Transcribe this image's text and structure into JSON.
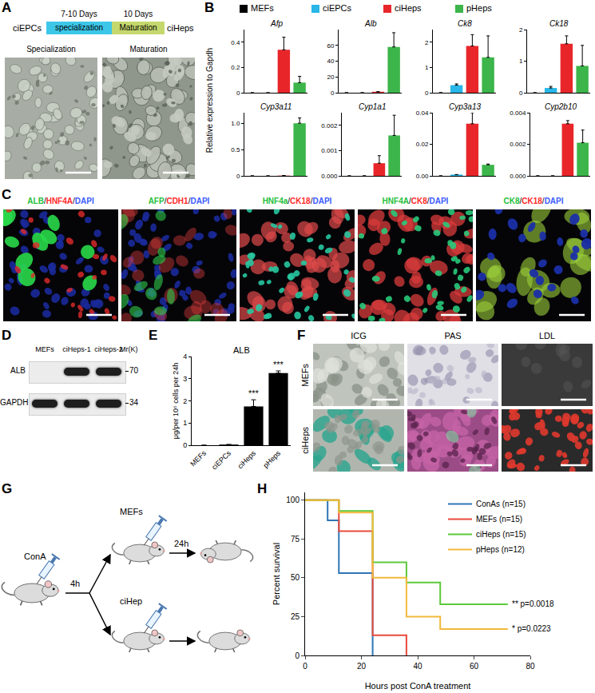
{
  "panel_labels": [
    "A",
    "B",
    "C",
    "D",
    "E",
    "F",
    "G",
    "H"
  ],
  "panel_A": {
    "start": "ciEPCs",
    "end": "ciHeps",
    "stages": [
      {
        "name": "specialization",
        "duration": "7-10 Days"
      },
      {
        "name": "Maturation",
        "duration": "10 Days"
      }
    ],
    "images": [
      "Specialization",
      "Maturation"
    ]
  },
  "panel_B": {
    "y_label": "Relative expression to Gapdh",
    "legend": [
      {
        "name": "MEFs",
        "color": "#000000"
      },
      {
        "name": "ciEPCs",
        "color": "#29b6e8"
      },
      {
        "name": "ciHeps",
        "color": "#e8262a"
      },
      {
        "name": "pHeps",
        "color": "#3cb54a"
      }
    ]
  },
  "panel_C": {
    "images": [
      [
        "ALB",
        "HNF4A",
        "DAPI"
      ],
      [
        "AFP",
        "CDH1",
        "DAPI"
      ],
      [
        "HNF4a",
        "CK18",
        "DAPI"
      ],
      [
        "HNF4A",
        "CK8",
        "DAPI"
      ],
      [
        "CK8",
        "CK18",
        "DAPI"
      ]
    ]
  },
  "panel_D": {
    "lanes": [
      "MEFs",
      "ciHeps-1",
      "ciHeps-2"
    ],
    "mr_label": "Mr(K)",
    "rows": [
      {
        "name": "ALB",
        "mr": "70",
        "bands": [
          false,
          true,
          true
        ]
      },
      {
        "name": "GAPDH",
        "mr": "34",
        "bands": [
          true,
          true,
          true
        ]
      }
    ]
  },
  "panel_F": {
    "columns": [
      "ICG",
      "PAS",
      "LDL"
    ],
    "rows": [
      "MEFs",
      "ciHeps"
    ]
  },
  "panel_G": {
    "injection": "ConA",
    "wait": "4h",
    "upper": {
      "cells": "MEFs",
      "time": "24h"
    },
    "lower": {
      "cells": "ciHep"
    }
  },
  "chart_data": [
    {
      "type": "bar",
      "panel": "B",
      "title": "Afp",
      "categories": [
        "MEFs",
        "ciEPCs",
        "ciHeps",
        "pHeps"
      ],
      "colors": [
        "#000000",
        "#29b6e8",
        "#e8262a",
        "#3cb54a"
      ],
      "values": [
        0,
        0,
        0.34,
        0.08
      ],
      "errors": [
        null,
        null,
        0.1,
        0.05
      ],
      "ylim": [
        0,
        0.5
      ],
      "yticks": [
        0,
        0.2,
        0.4
      ],
      "tick_labels": "y"
    },
    {
      "type": "bar",
      "panel": "B",
      "title": "Alb",
      "categories": [
        "MEFs",
        "ciEPCs",
        "ciHeps",
        "pHeps"
      ],
      "colors": [
        "#000000",
        "#29b6e8",
        "#e8262a",
        "#3cb54a"
      ],
      "values": [
        0,
        0,
        1.2,
        58
      ],
      "errors": [
        null,
        null,
        0.1,
        18
      ],
      "ylim": [
        0,
        80
      ],
      "yticks": [
        0,
        20,
        40,
        60
      ],
      "tick_labels": "y"
    },
    {
      "type": "bar",
      "panel": "B",
      "title": "Ck8",
      "categories": [
        "MEFs",
        "ciEPCs",
        "ciHeps",
        "pHeps"
      ],
      "colors": [
        "#000000",
        "#29b6e8",
        "#e8262a",
        "#3cb54a"
      ],
      "values": [
        0,
        0.3,
        1.85,
        1.4
      ],
      "errors": [
        null,
        0.05,
        0.45,
        0.85
      ],
      "ylim": [
        0,
        2.5
      ],
      "yticks": [
        0,
        1,
        2
      ],
      "tick_labels": "y"
    },
    {
      "type": "bar",
      "panel": "B",
      "title": "Ck18",
      "categories": [
        "MEFs",
        "ciEPCs",
        "ciHeps",
        "pHeps"
      ],
      "colors": [
        "#000000",
        "#29b6e8",
        "#e8262a",
        "#3cb54a"
      ],
      "values": [
        0,
        0.15,
        1.55,
        0.85
      ],
      "errors": [
        null,
        0.05,
        0.25,
        0.65
      ],
      "ylim": [
        0,
        2
      ],
      "yticks": [
        0,
        1,
        2
      ],
      "tick_labels": "y"
    },
    {
      "type": "bar",
      "panel": "B",
      "title": "Cyp3a11",
      "categories": [
        "MEFs",
        "ciEPCs",
        "ciHeps",
        "pHeps"
      ],
      "colors": [
        "#000000",
        "#29b6e8",
        "#e8262a",
        "#3cb54a"
      ],
      "values": [
        0,
        0,
        0.005,
        1.0
      ],
      "errors": [
        null,
        null,
        0.001,
        0.1
      ],
      "ylim": [
        0,
        1.2
      ],
      "yticks": [
        0,
        0.5,
        {
          "value": 1,
          "label": "1.0"
        }
      ],
      "tick_labels": "y"
    },
    {
      "type": "bar",
      "panel": "B",
      "title": "Cyp1a1",
      "categories": [
        "MEFs",
        "ciEPCs",
        "ciHeps",
        "pHeps"
      ],
      "colors": [
        "#000000",
        "#29b6e8",
        "#e8262a",
        "#3cb54a"
      ],
      "values": [
        0,
        0,
        0.0005,
        0.0016
      ],
      "errors": [
        null,
        null,
        0.0003,
        0.0008
      ],
      "ylim": [
        0,
        0.0025
      ],
      "yticks": [
        {
          "value": 0,
          "label": "0.000"
        },
        0.001,
        0.002
      ],
      "tick_labels": "y"
    },
    {
      "type": "bar",
      "panel": "B",
      "title": "Cyp3a13",
      "categories": [
        "MEFs",
        "ciEPCs",
        "ciHeps",
        "pHeps"
      ],
      "colors": [
        "#000000",
        "#29b6e8",
        "#e8262a",
        "#3cb54a"
      ],
      "values": [
        0,
        0.0008,
        0.033,
        0.007
      ],
      "errors": [
        null,
        null,
        0.007,
        0.0005
      ],
      "ylim": [
        0,
        0.04
      ],
      "yticks": [
        {
          "value": 0,
          "label": "0.00"
        },
        0.02,
        0.04
      ],
      "tick_labels": "y"
    },
    {
      "type": "bar",
      "panel": "B",
      "title": "Cyp2b10",
      "categories": [
        "MEFs",
        "ciEPCs",
        "ciHeps",
        "pHeps"
      ],
      "colors": [
        "#000000",
        "#29b6e8",
        "#e8262a",
        "#3cb54a"
      ],
      "values": [
        0,
        0,
        0.0033,
        0.0021
      ],
      "errors": [
        null,
        null,
        0.0002,
        0.0008
      ],
      "ylim": [
        0,
        0.004
      ],
      "yticks": [
        {
          "value": 0,
          "label": "0.000"
        },
        0.002,
        0.004
      ],
      "tick_labels": "y"
    },
    {
      "type": "bar",
      "panel": "E",
      "title": "ALB",
      "categories": [
        "MEFs",
        "ciEPCs",
        "ciHeps",
        "pHeps"
      ],
      "color": "#000000",
      "values": [
        0,
        0.03,
        1.75,
        3.25
      ],
      "errors": [
        null,
        null,
        0.3,
        0.1
      ],
      "ylim": [
        0,
        4
      ],
      "yticks": [
        0,
        1,
        2,
        3,
        4
      ],
      "y_label": "μg/per 10⁶ cells per 24h",
      "annotations": [
        {
          "category": "ciHeps",
          "text": "***"
        },
        {
          "category": "pHeps",
          "text": "***"
        }
      ]
    },
    {
      "type": "line",
      "panel": "H",
      "x_label": "Hours post ConA treatment",
      "y_label": "Percent survival",
      "xlim": [
        0,
        80
      ],
      "xticks": [
        0,
        20,
        40,
        60,
        80
      ],
      "ylim": [
        0,
        105
      ],
      "yticks": [
        0,
        25,
        50,
        75,
        100
      ],
      "legend": "top right",
      "series": [
        {
          "name": "ConAs (n=15)",
          "color": "#2e75b6",
          "line_style": "step",
          "x": [
            0,
            8,
            12,
            24
          ],
          "values": [
            100,
            87,
            53,
            0
          ]
        },
        {
          "name": "MEFs (n=15)",
          "color": "#e84a3c",
          "line_style": "step",
          "x": [
            0,
            12,
            24,
            36
          ],
          "values": [
            100,
            80,
            13,
            0
          ]
        },
        {
          "name": "ciHeps (n=15)",
          "color": "#5cc93a",
          "line_style": "step",
          "x": [
            0,
            12,
            24,
            36,
            48,
            72
          ],
          "values": [
            100,
            93,
            60,
            47,
            33,
            33
          ]
        },
        {
          "name": "pHeps (n=12)",
          "color": "#f2b93b",
          "line_style": "step",
          "x": [
            0,
            12,
            24,
            36,
            48,
            72
          ],
          "values": [
            100,
            92,
            50,
            25,
            17,
            17
          ]
        }
      ],
      "annotations": [
        {
          "x": 72,
          "y": 33,
          "text": "** p=0.0018"
        },
        {
          "x": 72,
          "y": 17,
          "text": "* p=0.0223"
        }
      ]
    }
  ]
}
